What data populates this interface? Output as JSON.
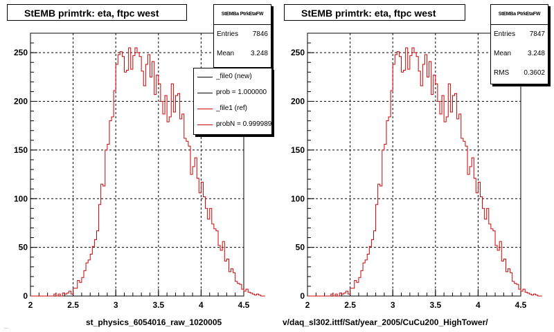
{
  "colors": {
    "new_line": "#000000",
    "ref_line": "#cc0000",
    "grid": "#000000",
    "background": "#ffffff"
  },
  "footer_left": "...",
  "left_pad": {
    "title": "StEMB primtrk: eta, ftpc west",
    "caption": "st_physics_6054016_raw_1020005",
    "stats": {
      "title": "StEMBa PtrkEtaFW",
      "rows": [
        {
          "key": "Entries",
          "value": "7846"
        },
        {
          "key": "Mean",
          "value": "3.248"
        }
      ]
    },
    "legend": [
      {
        "label": "_file0 (new)",
        "color": "#000000"
      },
      {
        "label": "prob = 1.000000",
        "color": "#000000"
      },
      {
        "label": "_file1 (ref)",
        "color": "#cc0000"
      },
      {
        "label": "probN = 0.999989",
        "color": "#cc0000"
      }
    ]
  },
  "right_pad": {
    "title": "StEMB primtrk: eta, ftpc west",
    "caption": "v/daq_sl302.ittf/Sat/year_2005/CuCu200_HighTower/",
    "stats": {
      "title": "StEMBa PtrkEtaFW",
      "rows": [
        {
          "key": "Entries",
          "value": "7847"
        },
        {
          "key": "Mean",
          "value": "3.248"
        },
        {
          "key": "RMS",
          "value": "0.3602"
        }
      ]
    }
  },
  "chart_data": [
    {
      "type": "histogram",
      "title": "StEMB primtrk: eta, ftpc west",
      "xlabel": "st_physics_6054016_raw_1020005",
      "ylabel": "",
      "xlim": [
        2,
        4.5
      ],
      "ylim": [
        0,
        270
      ],
      "x_ticks": [
        "2",
        "2.5",
        "3",
        "3.5",
        "4",
        "4.5"
      ],
      "y_ticks": [
        "0",
        "50",
        "100",
        "150",
        "200",
        "250"
      ],
      "grid": true,
      "bin_width": 0.025,
      "x_start": 2.0,
      "series": [
        {
          "name": "_file1 (ref)",
          "values": [
            0,
            0,
            0,
            0,
            0,
            0,
            0,
            0,
            0,
            0,
            0,
            2,
            0,
            2,
            0,
            3,
            2,
            3,
            5,
            2,
            8,
            8,
            16,
            14,
            19,
            26,
            34,
            37,
            43,
            51,
            58,
            67,
            94,
            115,
            113,
            150,
            156,
            180,
            184,
            211,
            238,
            248,
            251,
            246,
            230,
            232,
            255,
            233,
            247,
            255,
            250,
            246,
            231,
            216,
            238,
            248,
            225,
            241,
            207,
            227,
            218,
            200,
            187,
            206,
            179,
            184,
            218,
            189,
            206,
            208,
            182,
            187,
            162,
            159,
            154,
            125,
            133,
            142,
            121,
            106,
            117,
            102,
            90,
            79,
            90,
            74,
            69,
            67,
            52,
            47,
            56,
            36,
            38,
            25,
            28,
            24,
            15,
            13,
            12,
            7,
            5,
            7,
            4,
            3,
            2,
            1,
            2,
            1,
            0,
            0
          ]
        }
      ]
    },
    {
      "type": "histogram",
      "title": "StEMB primtrk: eta, ftpc west",
      "xlabel": "v/daq_sl302.ittf/Sat/year_2005/CuCu200_HighTower/",
      "ylabel": "",
      "xlim": [
        2,
        4.5
      ],
      "ylim": [
        0,
        270
      ],
      "x_ticks": [
        "2",
        "2.5",
        "3",
        "3.5",
        "4",
        "4.5"
      ],
      "y_ticks": [
        "0",
        "50",
        "100",
        "150",
        "200",
        "250"
      ],
      "grid": true,
      "bin_width": 0.025,
      "x_start": 2.0,
      "series": [
        {
          "name": "_file1 (ref)",
          "values": [
            0,
            0,
            0,
            0,
            0,
            0,
            0,
            0,
            0,
            0,
            0,
            2,
            0,
            2,
            0,
            3,
            2,
            3,
            5,
            2,
            8,
            8,
            16,
            14,
            19,
            26,
            34,
            37,
            43,
            51,
            58,
            67,
            94,
            115,
            113,
            150,
            156,
            180,
            184,
            211,
            238,
            248,
            251,
            246,
            230,
            232,
            255,
            233,
            247,
            255,
            250,
            246,
            231,
            216,
            238,
            248,
            225,
            241,
            207,
            227,
            218,
            200,
            187,
            206,
            179,
            184,
            218,
            189,
            206,
            208,
            182,
            187,
            162,
            159,
            154,
            125,
            133,
            142,
            121,
            106,
            117,
            102,
            90,
            79,
            90,
            74,
            69,
            67,
            52,
            47,
            56,
            36,
            38,
            25,
            28,
            24,
            15,
            13,
            12,
            7,
            5,
            7,
            4,
            3,
            2,
            1,
            2,
            1,
            0,
            0
          ]
        }
      ]
    }
  ]
}
